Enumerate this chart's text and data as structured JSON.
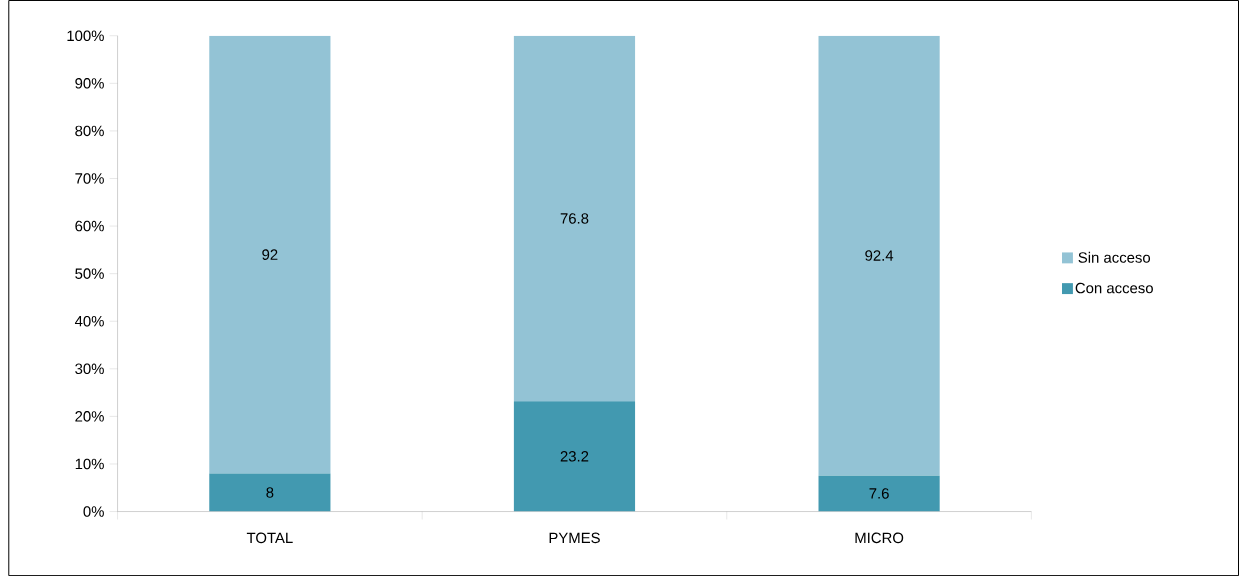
{
  "chart_data": {
    "type": "bar",
    "stacked": true,
    "categories": [
      "TOTAL",
      "PYMES",
      "MICRO"
    ],
    "series": [
      {
        "name": "Con acceso",
        "color": "#4299b0",
        "values": [
          8,
          23.2,
          7.6
        ]
      },
      {
        "name": "Sin acceso",
        "color": "#93c3d5",
        "values": [
          92,
          76.8,
          92.4
        ]
      }
    ],
    "ylim": [
      0,
      100
    ],
    "yticks": [
      {
        "value": 0,
        "label": "0%"
      },
      {
        "value": 10,
        "label": "10%"
      },
      {
        "value": 20,
        "label": "20%"
      },
      {
        "value": 30,
        "label": "30%"
      },
      {
        "value": 40,
        "label": "40%"
      },
      {
        "value": 50,
        "label": "50%"
      },
      {
        "value": 60,
        "label": "60%"
      },
      {
        "value": 70,
        "label": "70%"
      },
      {
        "value": 80,
        "label": "80%"
      },
      {
        "value": 90,
        "label": "90%"
      },
      {
        "value": 100,
        "label": "100%"
      }
    ],
    "data_labels": true,
    "legend": "right",
    "grid": false
  }
}
